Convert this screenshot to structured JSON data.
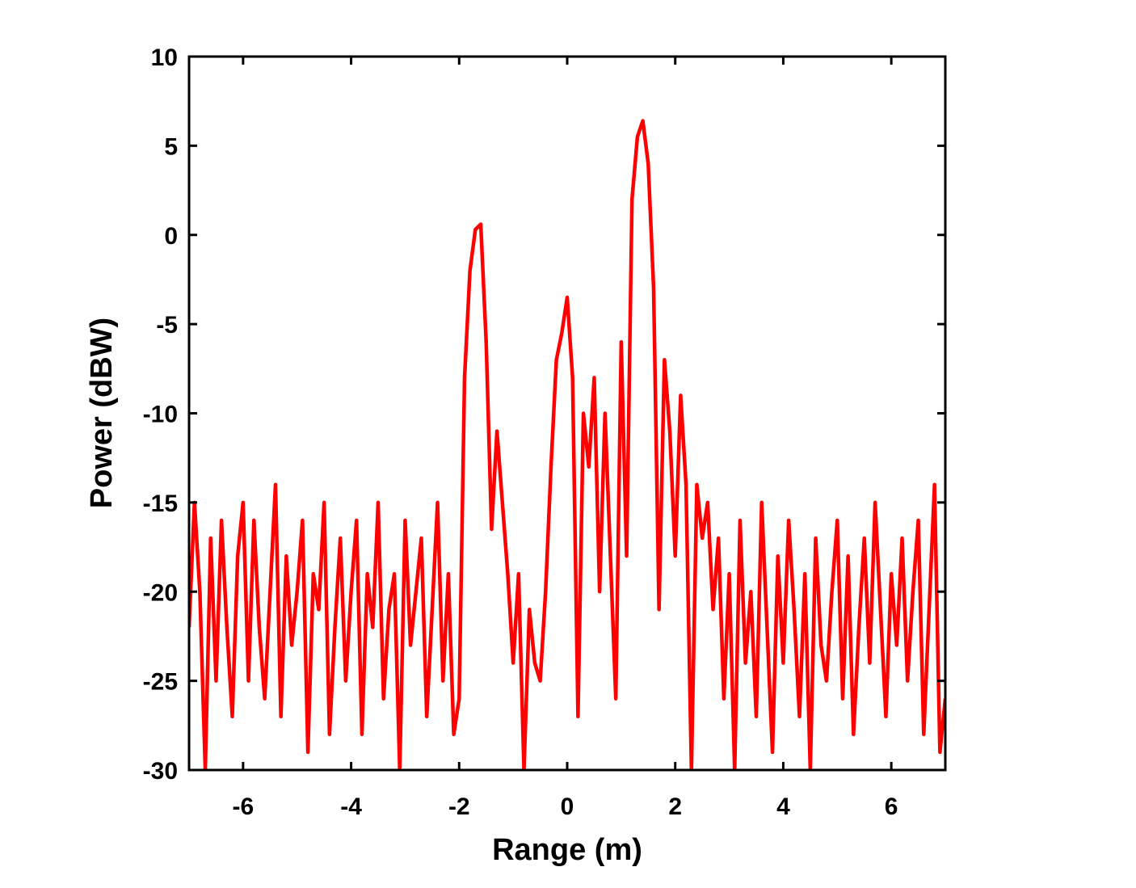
{
  "chart_data": {
    "type": "line",
    "xlabel": "Range (m)",
    "ylabel": "Power (dBW)",
    "x": [
      -7,
      -6.9,
      -6.8,
      -6.7,
      -6.6,
      -6.5,
      -6.4,
      -6.3,
      -6.2,
      -6.1,
      -6,
      -5.9,
      -5.8,
      -5.7,
      -5.6,
      -5.5,
      -5.4,
      -5.3,
      -5.2,
      -5.1,
      -5,
      -4.9,
      -4.8,
      -4.7,
      -4.6,
      -4.5,
      -4.4,
      -4.3,
      -4.2,
      -4.1,
      -4,
      -3.9,
      -3.8,
      -3.7,
      -3.6,
      -3.5,
      -3.4,
      -3.3,
      -3.2,
      -3.1,
      -3,
      -2.9,
      -2.8,
      -2.7,
      -2.6,
      -2.5,
      -2.4,
      -2.3,
      -2.2,
      -2.1,
      -2,
      -1.9,
      -1.8,
      -1.7,
      -1.6,
      -1.5,
      -1.4,
      -1.3,
      -1.2,
      -1.1,
      -1,
      -0.9,
      -0.8,
      -0.7,
      -0.6,
      -0.5,
      -0.4,
      -0.3,
      -0.2,
      -0.1,
      0,
      0.1,
      0.2,
      0.3,
      0.4,
      0.5,
      0.6,
      0.7,
      0.8,
      0.9,
      1,
      1.1,
      1.2,
      1.3,
      1.4,
      1.5,
      1.6,
      1.7,
      1.8,
      1.9,
      2,
      2.1,
      2.2,
      2.3,
      2.4,
      2.5,
      2.6,
      2.7,
      2.8,
      2.9,
      3,
      3.1,
      3.2,
      3.3,
      3.4,
      3.5,
      3.6,
      3.7,
      3.8,
      3.9,
      4,
      4.1,
      4.2,
      4.3,
      4.4,
      4.5,
      4.6,
      4.7,
      4.8,
      4.9,
      5,
      5.1,
      5.2,
      5.3,
      5.4,
      5.5,
      5.6,
      5.7,
      5.8,
      5.9,
      6,
      6.1,
      6.2,
      6.3,
      6.4,
      6.5,
      6.6,
      6.7,
      6.8,
      6.9,
      7
    ],
    "series": [
      {
        "color": "#ff0000",
        "values": [
          -22,
          -15,
          -20,
          -30,
          -17,
          -25,
          -16,
          -22,
          -27,
          -18,
          -15,
          -25,
          -16,
          -22,
          -26,
          -20,
          -14,
          -27,
          -18,
          -23,
          -20,
          -16,
          -29,
          -19,
          -21,
          -15,
          -28,
          -22,
          -17,
          -25,
          -20,
          -16,
          -28,
          -19,
          -22,
          -15,
          -26,
          -21,
          -19,
          -30,
          -16,
          -23,
          -20,
          -17,
          -27,
          -21,
          -15,
          -25,
          -19,
          -28,
          -26,
          -8,
          -2,
          0.3,
          0.6,
          -6,
          -16.5,
          -11,
          -15,
          -19,
          -24,
          -19,
          -30,
          -21,
          -24,
          -25,
          -20,
          -13,
          -7,
          -5.5,
          -3.5,
          -8,
          -27,
          -10,
          -13,
          -8,
          -20,
          -10,
          -18,
          -26,
          -6,
          -18,
          2,
          5.5,
          6.4,
          4,
          -3,
          -21,
          -7,
          -11,
          -18,
          -9,
          -14,
          -30,
          -14,
          -17,
          -15,
          -21,
          -17,
          -26,
          -19,
          -30,
          -16,
          -24,
          -20,
          -27,
          -15,
          -22,
          -29,
          -18,
          -24,
          -16,
          -21,
          -27,
          -19,
          -30,
          -17,
          -23,
          -25,
          -20,
          -16,
          -26,
          -18,
          -28,
          -22,
          -17,
          -24,
          -15,
          -21,
          -27,
          -19,
          -23,
          -17,
          -25,
          -20,
          -16,
          -28,
          -21,
          -14,
          -29,
          -26
        ]
      }
    ],
    "xlim": [
      -7,
      7
    ],
    "ylim": [
      -30,
      10
    ],
    "xticks": [
      -6,
      -4,
      -2,
      0,
      2,
      4,
      6
    ],
    "yticks": [
      -30,
      -25,
      -20,
      -15,
      -10,
      -5,
      0,
      5,
      10
    ]
  }
}
